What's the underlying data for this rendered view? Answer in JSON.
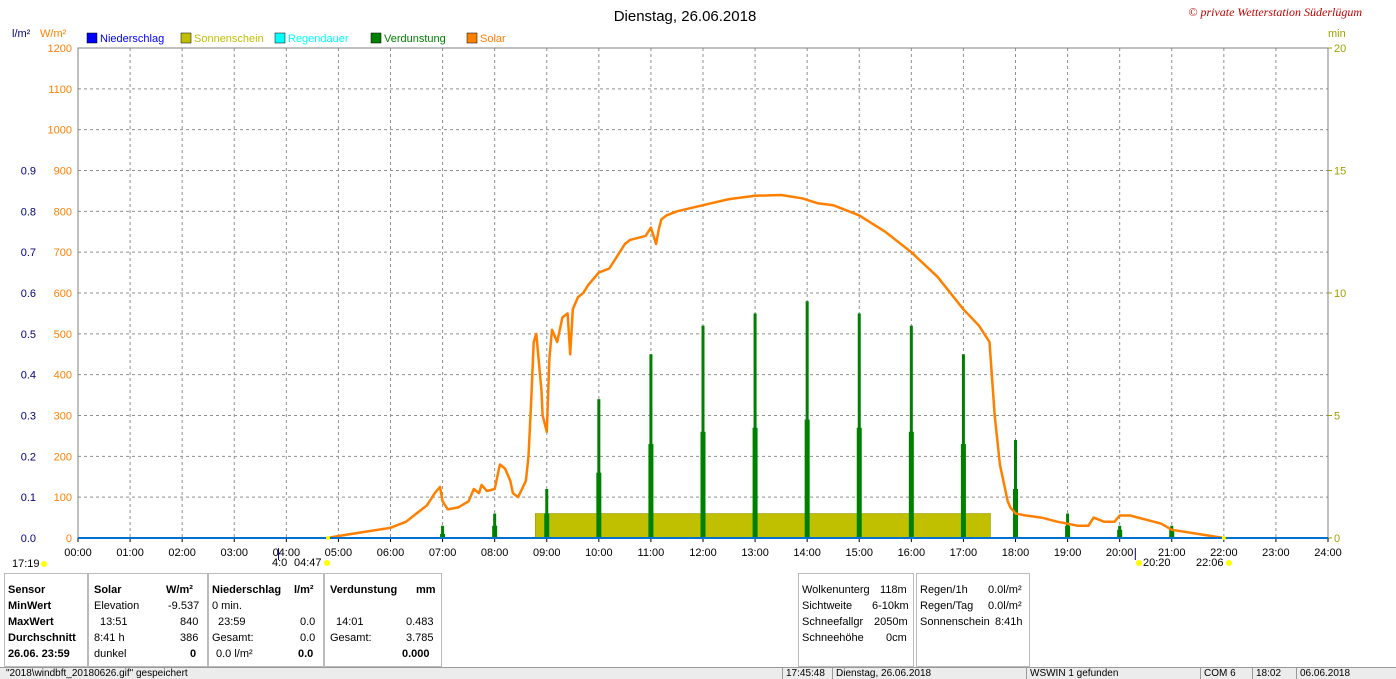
{
  "header": {
    "title": "Dienstag, 26.06.2018",
    "copyright": "© private Wetterstation Süderlügum",
    "unit_left_precip": "l/m²",
    "unit_left_solar": "W/m²",
    "unit_right": "min"
  },
  "legend": [
    {
      "name": "Niederschlag",
      "color": "#0000ff"
    },
    {
      "name": "Sonnenschein",
      "color": "#c0c000"
    },
    {
      "name": "Regendauer",
      "color": "#00ffff"
    },
    {
      "name": "Verdunstung",
      "color": "#008000"
    },
    {
      "name": "Solar",
      "color": "#ff8000"
    }
  ],
  "chart_data": {
    "type": "line",
    "x_range_hours": [
      0,
      24
    ],
    "x_ticks": [
      "00:00",
      "01:00",
      "02:00",
      "03:00",
      "04:00",
      "05:00",
      "06:00",
      "07:00",
      "08:00",
      "09:00",
      "10:00",
      "11:00",
      "12:00",
      "13:00",
      "14:00",
      "15:00",
      "16:00",
      "17:00",
      "18:00",
      "19:00",
      "20:00",
      "21:00",
      "22:00",
      "23:00",
      "24:00"
    ],
    "y_solar": {
      "range": [
        0,
        1200
      ],
      "ticks": [
        "0",
        "100",
        "200",
        "300",
        "400",
        "500",
        "600",
        "700",
        "800",
        "900",
        "1000",
        "1100",
        "1200"
      ],
      "color": "#ff8000"
    },
    "y_precip": {
      "range": [
        0,
        1.2
      ],
      "ticks": [
        "0.0",
        "0.1",
        "0.2",
        "0.3",
        "0.4",
        "0.5",
        "0.6",
        "0.7",
        "0.8",
        "0.9"
      ],
      "color": "#000080"
    },
    "y_min": {
      "range": [
        0,
        20
      ],
      "ticks": [
        "0",
        "5",
        "10",
        "15",
        "20"
      ],
      "color": "#a0a000"
    },
    "grid": true,
    "series": [
      {
        "name": "Solar",
        "color": "#ff8000",
        "x": [
          4.8,
          5.0,
          5.5,
          6.0,
          6.3,
          6.5,
          6.7,
          6.85,
          6.95,
          7.0,
          7.1,
          7.3,
          7.5,
          7.6,
          7.7,
          7.75,
          7.85,
          8.0,
          8.1,
          8.2,
          8.3,
          8.35,
          8.45,
          8.6,
          8.65,
          8.7,
          8.75,
          8.8,
          8.85,
          8.9,
          8.92,
          9.0,
          9.05,
          9.1,
          9.2,
          9.3,
          9.4,
          9.45,
          9.5,
          9.6,
          9.7,
          9.8,
          10.0,
          10.2,
          10.4,
          10.5,
          10.6,
          10.75,
          10.9,
          11.0,
          11.1,
          11.15,
          11.2,
          11.3,
          11.5,
          12.0,
          12.5,
          13.0,
          13.5,
          13.9,
          14.2,
          14.5,
          15.0,
          15.5,
          16.0,
          16.5,
          17.0,
          17.3,
          17.5,
          17.6,
          17.65,
          17.7,
          17.75,
          17.8,
          17.85,
          17.9,
          18.0,
          18.2,
          18.5,
          18.8,
          19.0,
          19.2,
          19.4,
          19.5,
          19.7,
          19.9,
          20.0,
          20.2,
          20.5,
          20.8,
          21.0,
          21.5,
          22.0
        ],
        "y": [
          0,
          5,
          15,
          25,
          40,
          60,
          80,
          110,
          125,
          90,
          70,
          75,
          90,
          120,
          110,
          130,
          115,
          120,
          180,
          170,
          140,
          110,
          100,
          140,
          200,
          330,
          480,
          500,
          430,
          360,
          300,
          260,
          440,
          510,
          480,
          540,
          550,
          450,
          560,
          590,
          600,
          620,
          650,
          660,
          700,
          720,
          730,
          735,
          740,
          760,
          720,
          755,
          780,
          790,
          800,
          815,
          830,
          838,
          840,
          832,
          820,
          815,
          790,
          750,
          700,
          640,
          560,
          520,
          480,
          300,
          240,
          180,
          150,
          120,
          90,
          75,
          60,
          55,
          50,
          40,
          35,
          30,
          30,
          50,
          40,
          40,
          55,
          55,
          45,
          35,
          20,
          10,
          0
        ]
      },
      {
        "name": "Verdunstung",
        "color": "#008000",
        "x": [
          7.0,
          8.0,
          9.0,
          10.0,
          11.0,
          12.0,
          13.0,
          14.0,
          15.0,
          16.0,
          17.0,
          18.0,
          19.0,
          20.0,
          21.0
        ],
        "y": [
          0.03,
          0.06,
          0.12,
          0.34,
          0.45,
          0.52,
          0.55,
          0.58,
          0.55,
          0.52,
          0.45,
          0.24,
          0.06,
          0.03,
          0.03
        ],
        "y2": [
          0.01,
          0.03,
          0.06,
          0.16,
          0.23,
          0.26,
          0.27,
          0.29,
          0.27,
          0.26,
          0.23,
          0.12,
          0.03,
          0.02,
          0.02
        ]
      },
      {
        "name": "Sonnenschein",
        "color": "#c0c000",
        "x": [
          8.78,
          17.52
        ],
        "y": [
          1,
          1
        ]
      },
      {
        "name": "Niederschlag",
        "color": "#0070d0",
        "x": [
          0,
          24
        ],
        "y": [
          0,
          0
        ]
      }
    ],
    "annotations": {
      "sunrise_left": "17:19",
      "sunrise_mark": "4:0",
      "sunrise_time": "04:47",
      "sunset_time": "20:20",
      "moonset_time": "22:06"
    }
  },
  "table": {
    "rows_label": {
      "sensor": "Sensor",
      "min": "MinWert",
      "max": "MaxWert",
      "avg": "Durchschnitt",
      "date": "26.06. 23:59"
    },
    "solar": {
      "header": "Solar",
      "unit": "W/m²",
      "min_label": "Elevation",
      "min_val": "-9.537",
      "max_time": "13:51",
      "max_val": "840",
      "avg_time": "8:41 h",
      "avg_val": "386",
      "now_label": "dunkel",
      "now_val": "0"
    },
    "precip": {
      "header": "Niederschlag",
      "unit": "l/m²",
      "min_label": "0 min.",
      "max_time": "23:59",
      "max_val": "0.0",
      "gesamt_label": "Gesamt:",
      "gesamt_val": "0.0",
      "now_label": "0.0 l/m²",
      "now_val": "0.0"
    },
    "evap": {
      "header": "Verdunstung",
      "unit": "mm",
      "max_time": "14:01",
      "max_val": "0.483",
      "gesamt_label": "Gesamt:",
      "gesamt_val": "3.785",
      "now_val": "0.000"
    },
    "weather": [
      {
        "label": "Wolkenunterg",
        "value": "118m"
      },
      {
        "label": "Sichtweite",
        "value": "6-10km"
      },
      {
        "label": "Schneefallgr",
        "value": "2050m"
      },
      {
        "label": "Schneehöhe",
        "value": "0cm"
      }
    ],
    "rain": [
      {
        "label": "Regen/1h",
        "value": "0.0l/m²"
      },
      {
        "label": "Regen/Tag",
        "value": "0.0l/m²"
      },
      {
        "label": "Sonnenschein",
        "value": "8:41h"
      }
    ]
  },
  "statusbar": {
    "file": "\"2018\\windbft_20180626.gif\" gespeichert",
    "time": "17:45:48",
    "date": "Dienstag, 26.06.2018",
    "wswin": "WSWIN 1 gefunden",
    "com": "COM 6",
    "clock": "18:02",
    "sysdate": "06.06.2018"
  }
}
